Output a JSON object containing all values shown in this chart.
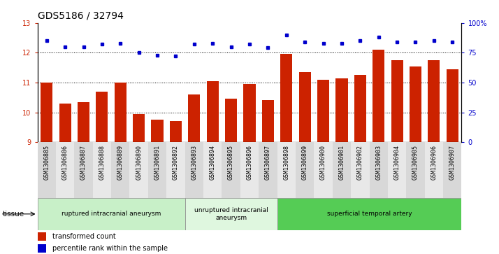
{
  "title": "GDS5186 / 32794",
  "categories": [
    "GSM1306885",
    "GSM1306886",
    "GSM1306887",
    "GSM1306888",
    "GSM1306889",
    "GSM1306890",
    "GSM1306891",
    "GSM1306892",
    "GSM1306893",
    "GSM1306894",
    "GSM1306895",
    "GSM1306896",
    "GSM1306897",
    "GSM1306898",
    "GSM1306899",
    "GSM1306900",
    "GSM1306901",
    "GSM1306902",
    "GSM1306903",
    "GSM1306904",
    "GSM1306905",
    "GSM1306906",
    "GSM1306907"
  ],
  "bar_values": [
    11.0,
    10.3,
    10.35,
    10.7,
    11.0,
    9.95,
    9.75,
    9.72,
    10.6,
    11.05,
    10.45,
    10.95,
    10.42,
    11.95,
    11.35,
    11.1,
    11.15,
    11.25,
    12.1,
    11.75,
    11.55,
    11.75,
    11.45
  ],
  "dot_values": [
    85,
    80,
    80,
    82,
    83,
    75,
    73,
    72,
    82,
    83,
    80,
    82,
    79,
    90,
    84,
    83,
    83,
    85,
    88,
    84,
    84,
    85,
    84
  ],
  "bar_color": "#cc2200",
  "dot_color": "#0000cc",
  "ylim_left": [
    9,
    13
  ],
  "ylim_right": [
    0,
    100
  ],
  "yticks_left": [
    9,
    10,
    11,
    12,
    13
  ],
  "yticks_right": [
    0,
    25,
    50,
    75,
    100
  ],
  "ytick_labels_right": [
    "0",
    "25",
    "50",
    "75",
    "100%"
  ],
  "grid_yticks": [
    10,
    11,
    12
  ],
  "plot_bg_color": "#ffffff",
  "tissue_groups": [
    {
      "label": "ruptured intracranial aneurysm",
      "start": 0,
      "end": 8,
      "color": "#c8f0c8"
    },
    {
      "label": "unruptured intracranial\naneurysm",
      "start": 8,
      "end": 13,
      "color": "#dff7df"
    },
    {
      "label": "superficial temporal artery",
      "start": 13,
      "end": 23,
      "color": "#55cc55"
    }
  ],
  "tissue_label": "tissue",
  "legend_bar_label": "transformed count",
  "legend_dot_label": "percentile rank within the sample",
  "title_fontsize": 10,
  "tick_fontsize": 7,
  "xtick_fontsize": 6,
  "cell_bg_color": "#d8d8d8",
  "cell_alt_color": "#e8e8e8"
}
